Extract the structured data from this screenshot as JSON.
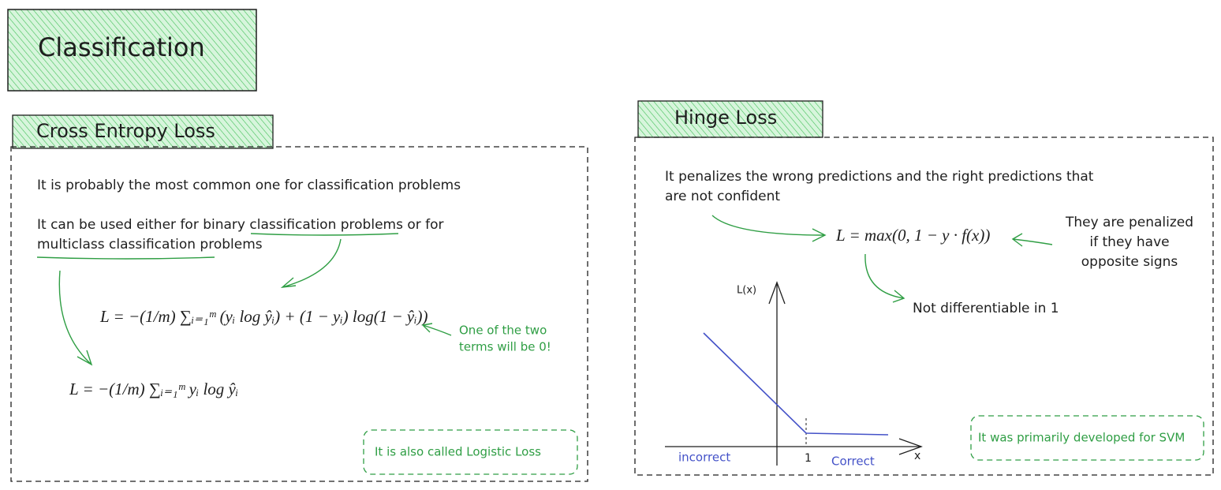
{
  "title": "Classification",
  "cross_entropy": {
    "title": "Cross Entropy Loss",
    "lines": [
      "It is probably the most common one for classification problems",
      "It can be used either for binary classification problems or for",
      "multiclass classification problems"
    ],
    "formula_full": "L = −(1/m) ∑ᵢ₌₁ᵐ (yᵢ log ŷᵢ) + (1 − yᵢ) log(1 − ŷᵢ))",
    "formula_short": "L = −(1/m) ∑ᵢ₌₁ᵐ yᵢ log ŷᵢ",
    "note": [
      "One of the two",
      "terms will be 0!"
    ],
    "callout": "It is also called Logistic Loss"
  },
  "hinge": {
    "title": "Hinge Loss",
    "lines": [
      "It penalizes the wrong predictions and the right predictions that",
      "are not confident"
    ],
    "formula": "L = max(0, 1 − y · f(x))",
    "note": [
      "They are penalized",
      "if they have",
      "opposite signs"
    ],
    "not_differentiable": "Not differentiable in 1",
    "plot": {
      "y_label": "L(x)",
      "x_label": "x",
      "tick": "1",
      "left_label": "incorrect",
      "right_label": "Correct"
    },
    "callout": "It was primarily developed for SVM"
  }
}
